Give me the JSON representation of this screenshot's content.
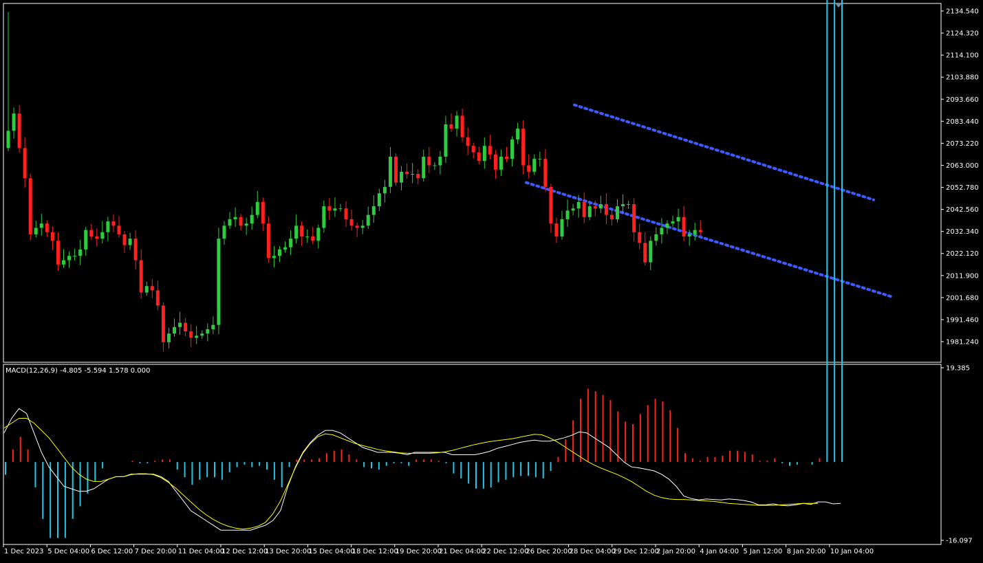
{
  "colors": {
    "background": "#000000",
    "frame": "#ffffff",
    "bull": "#2ecc40",
    "bear": "#ff2020",
    "channel": "#3d5cff",
    "macd_line": "#ffffff",
    "signal_line": "#ffff00",
    "hist_pos": "#ff2020",
    "hist_neg": "#22c7e6",
    "text": "#ffffff"
  },
  "indicator_label": "MACD(12,26,9) -4.805 -5.594 1.578 0.000",
  "chart_data": [
    {
      "type": "candlestick",
      "ylim": [
        1971.0,
        2136.0
      ],
      "y_ticks": [
        "2134.540",
        "2124.320",
        "2114.100",
        "2103.880",
        "2093.660",
        "2083.440",
        "2073.220",
        "2063.000",
        "2052.780",
        "2042.560",
        "2032.340",
        "2022.120",
        "2011.900",
        "2001.680",
        "1991.460",
        "1981.240"
      ],
      "x_ticks": [
        "1 Dec 2023",
        "5 Dec 04:00",
        "6 Dec 12:00",
        "7 Dec 20:00",
        "11 Dec 04:00",
        "12 Dec 12:00",
        "13 Dec 20:00",
        "15 Dec 04:00",
        "18 Dec 12:00",
        "19 Dec 20:00",
        "21 Dec 04:00",
        "22 Dec 12:00",
        "26 Dec 20:00",
        "28 Dec 04:00",
        "29 Dec 12:00",
        "2 Jan 20:00",
        "4 Jan 04:00",
        "5 Jan 12:00",
        "8 Jan 20:00",
        "10 Jan 04:00"
      ],
      "close": [
        2079,
        2087,
        2071,
        2057,
        2031,
        2034,
        2036,
        2032,
        2028,
        2017,
        2019,
        2021,
        2021,
        2024,
        2033,
        2030,
        2029,
        2032,
        2037,
        2035,
        2031,
        2026,
        2029,
        2019,
        2004,
        2007,
        2005,
        1998,
        1981,
        1985,
        1988,
        1990,
        1986,
        1983,
        1984,
        1985,
        1987,
        1989,
        2029,
        2035,
        2038,
        2039,
        2035,
        2036,
        2040,
        2046,
        2036,
        2020,
        2021,
        2024,
        2025,
        2029,
        2035,
        2030,
        2030,
        2028,
        2034,
        2044,
        2042,
        2043,
        2043,
        2038,
        2035,
        2034,
        2035,
        2040,
        2044,
        2050,
        2053,
        2067,
        2055,
        2060,
        2059,
        2059,
        2057,
        2067,
        2063,
        2063,
        2067,
        2082,
        2080,
        2086,
        2076,
        2072,
        2069,
        2065,
        2072,
        2068,
        2061,
        2067,
        2066,
        2075,
        2080,
        2063,
        2060,
        2066,
        2066,
        2053,
        2036,
        2030,
        2038,
        2042,
        2043,
        2046,
        2039,
        2044,
        2043,
        2045,
        2040,
        2038,
        2044,
        2045,
        2045,
        2032,
        2027,
        2018,
        2028,
        2031,
        2034,
        2036,
        2037,
        2039,
        2030,
        2031,
        2033,
        2032
      ],
      "channel_upper": [
        [
          "2023-12-28 04:00",
          2091
        ],
        [
          "2024-01-10 12:00",
          2047
        ]
      ],
      "channel_lower": [
        [
          "2023-12-26 20:00",
          2055
        ],
        [
          "2024-01-10 20:00",
          2002
        ]
      ]
    },
    {
      "type": "macd",
      "ylim": [
        -16.097,
        19.385
      ],
      "y_ticks": [
        "19.385",
        "-16.097"
      ],
      "macd": [
        6,
        9,
        11,
        10,
        6,
        2,
        -1,
        -3,
        -5,
        -5.5,
        -6,
        -6,
        -5.5,
        -4.5,
        -3.5,
        -3,
        -3,
        -2.5,
        -2.5,
        -2.5,
        -2.5,
        -3,
        -4,
        -6,
        -8,
        -10,
        -11,
        -12,
        -13,
        -14,
        -14,
        -14,
        -14,
        -14,
        -13.5,
        -13,
        -12,
        -10,
        -5,
        -1,
        2,
        4,
        5.5,
        6.5,
        6.5,
        6,
        5,
        4,
        3,
        2.5,
        2,
        2,
        2,
        1.8,
        1.5,
        2,
        2,
        2,
        2,
        2,
        1.5,
        1.5,
        1.5,
        1.5,
        1.8,
        2.2,
        2.8,
        3.2,
        3.6,
        4,
        4.3,
        4.5,
        4.3,
        4.3,
        4.6,
        5,
        5.5,
        6.2,
        6,
        5,
        4,
        3,
        1.5,
        0,
        -1,
        -1.2,
        -1.5,
        -1.8,
        -2.5,
        -3.5,
        -5,
        -7,
        -7.5,
        -7.8,
        -7.6,
        -7.7,
        -7.8,
        -7.6,
        -7.7,
        -7.9,
        -8.2,
        -8.8,
        -8.8,
        -8.6,
        -8.9,
        -9,
        -8.8,
        -8.5,
        -8.7,
        -8.2,
        -8.2,
        -8.6,
        -8.5
      ],
      "signal": [
        7,
        8,
        9,
        9,
        8,
        6.5,
        5,
        3,
        1,
        -1,
        -2.5,
        -3.5,
        -4,
        -4,
        -3.5,
        -3,
        -3,
        -2.6,
        -2.4,
        -2.4,
        -2.6,
        -3.2,
        -4.2,
        -5.4,
        -6.8,
        -8.2,
        -9.6,
        -10.8,
        -11.8,
        -12.6,
        -13.2,
        -13.6,
        -13.8,
        -13.6,
        -13.2,
        -12.4,
        -10.6,
        -8,
        -4.6,
        -1.2,
        1.8,
        3.8,
        5.2,
        5.8,
        5.6,
        5,
        4.4,
        3.8,
        3.4,
        3,
        2.6,
        2.3,
        2.1,
        1.9,
        1.8,
        1.8,
        1.8,
        1.8,
        1.9,
        2.1,
        2.4,
        2.8,
        3.2,
        3.6,
        3.9,
        4.2,
        4.4,
        4.6,
        4.8,
        5.1,
        5.4,
        5.7,
        5.6,
        5,
        4.2,
        3.2,
        2.2,
        1.2,
        0.2,
        -0.6,
        -1.3,
        -1.9,
        -2.5,
        -3.2,
        -4,
        -5,
        -6,
        -6.8,
        -7.3,
        -7.6,
        -7.7,
        -7.7,
        -7.8,
        -7.9,
        -8,
        -8.1,
        -8.3,
        -8.5,
        -8.6,
        -8.7,
        -8.8,
        -8.9,
        -8.9,
        -8.9,
        -8.8,
        -8.7,
        -8.6,
        -8.5,
        -8.5,
        -8.5
      ]
    }
  ]
}
